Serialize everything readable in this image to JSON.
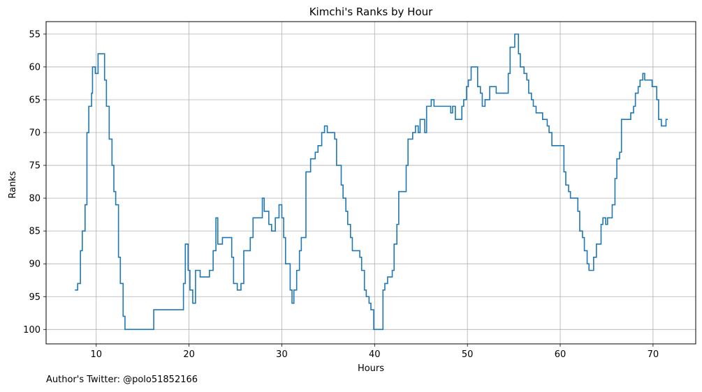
{
  "chart_data": {
    "type": "line",
    "title": "Kimchi's Ranks by Hour",
    "xlabel": "Hours",
    "ylabel": "Ranks",
    "xlim": [
      4.6,
      74.6
    ],
    "ylim": [
      102.2,
      53.1
    ],
    "y_inverted": true,
    "x_ticks": [
      10,
      20,
      30,
      40,
      50,
      60,
      70
    ],
    "y_ticks": [
      55,
      60,
      65,
      70,
      75,
      80,
      85,
      90,
      95,
      100
    ],
    "grid": true,
    "drawstyle": "steps-post",
    "series": [
      {
        "color": "#1f77b4",
        "points": [
          [
            7.7,
            94
          ],
          [
            8.0,
            93
          ],
          [
            8.3,
            88
          ],
          [
            8.5,
            85
          ],
          [
            8.8,
            81
          ],
          [
            9.0,
            70
          ],
          [
            9.2,
            66
          ],
          [
            9.5,
            64
          ],
          [
            9.6,
            60
          ],
          [
            9.9,
            61
          ],
          [
            10.2,
            58
          ],
          [
            10.9,
            62
          ],
          [
            11.1,
            66
          ],
          [
            11.4,
            71
          ],
          [
            11.7,
            75
          ],
          [
            11.9,
            79
          ],
          [
            12.1,
            81
          ],
          [
            12.4,
            89
          ],
          [
            12.6,
            93
          ],
          [
            12.9,
            98
          ],
          [
            13.1,
            100
          ],
          [
            16.2,
            97
          ],
          [
            19.4,
            93
          ],
          [
            19.6,
            87
          ],
          [
            19.9,
            91
          ],
          [
            20.1,
            94
          ],
          [
            20.4,
            96
          ],
          [
            20.7,
            91
          ],
          [
            21.2,
            92
          ],
          [
            22.2,
            91
          ],
          [
            22.6,
            88
          ],
          [
            22.9,
            83
          ],
          [
            23.1,
            87
          ],
          [
            23.6,
            86
          ],
          [
            24.6,
            89
          ],
          [
            24.8,
            93
          ],
          [
            25.2,
            94
          ],
          [
            25.6,
            93
          ],
          [
            25.9,
            88
          ],
          [
            26.6,
            86
          ],
          [
            26.9,
            83
          ],
          [
            27.9,
            80
          ],
          [
            28.1,
            82
          ],
          [
            28.6,
            84
          ],
          [
            28.9,
            85
          ],
          [
            29.3,
            83
          ],
          [
            29.7,
            81
          ],
          [
            30.0,
            83
          ],
          [
            30.2,
            86
          ],
          [
            30.4,
            90
          ],
          [
            30.9,
            94
          ],
          [
            31.1,
            96
          ],
          [
            31.3,
            94
          ],
          [
            31.6,
            91
          ],
          [
            31.9,
            88
          ],
          [
            32.1,
            86
          ],
          [
            32.6,
            76
          ],
          [
            33.1,
            74
          ],
          [
            33.6,
            73
          ],
          [
            33.9,
            72
          ],
          [
            34.3,
            70
          ],
          [
            34.6,
            69
          ],
          [
            34.9,
            70
          ],
          [
            35.7,
            71
          ],
          [
            35.9,
            75
          ],
          [
            36.4,
            78
          ],
          [
            36.6,
            80
          ],
          [
            36.9,
            82
          ],
          [
            37.1,
            84
          ],
          [
            37.4,
            86
          ],
          [
            37.6,
            88
          ],
          [
            38.4,
            89
          ],
          [
            38.6,
            91
          ],
          [
            38.9,
            94
          ],
          [
            39.1,
            95
          ],
          [
            39.4,
            96
          ],
          [
            39.6,
            97
          ],
          [
            39.9,
            100
          ],
          [
            40.9,
            94
          ],
          [
            41.1,
            93
          ],
          [
            41.4,
            92
          ],
          [
            41.9,
            91
          ],
          [
            42.1,
            87
          ],
          [
            42.4,
            84
          ],
          [
            42.6,
            79
          ],
          [
            43.4,
            75
          ],
          [
            43.6,
            71
          ],
          [
            44.1,
            70
          ],
          [
            44.4,
            69
          ],
          [
            44.7,
            70
          ],
          [
            44.9,
            68
          ],
          [
            45.4,
            70
          ],
          [
            45.6,
            66
          ],
          [
            46.1,
            65
          ],
          [
            46.4,
            66
          ],
          [
            48.2,
            67
          ],
          [
            48.4,
            66
          ],
          [
            48.7,
            68
          ],
          [
            49.4,
            66
          ],
          [
            49.6,
            65
          ],
          [
            49.9,
            63
          ],
          [
            50.1,
            62
          ],
          [
            50.4,
            60
          ],
          [
            51.1,
            63
          ],
          [
            51.4,
            64
          ],
          [
            51.6,
            66
          ],
          [
            51.9,
            65
          ],
          [
            52.4,
            63
          ],
          [
            53.1,
            64
          ],
          [
            54.4,
            61
          ],
          [
            54.6,
            57
          ],
          [
            55.1,
            55
          ],
          [
            55.5,
            58
          ],
          [
            55.7,
            60
          ],
          [
            56.1,
            61
          ],
          [
            56.4,
            62
          ],
          [
            56.6,
            64
          ],
          [
            56.9,
            65
          ],
          [
            57.1,
            66
          ],
          [
            57.4,
            67
          ],
          [
            58.1,
            68
          ],
          [
            58.6,
            69
          ],
          [
            58.8,
            70
          ],
          [
            59.1,
            72
          ],
          [
            60.4,
            76
          ],
          [
            60.6,
            78
          ],
          [
            60.9,
            79
          ],
          [
            61.1,
            80
          ],
          [
            61.9,
            82
          ],
          [
            62.1,
            85
          ],
          [
            62.4,
            86
          ],
          [
            62.6,
            88
          ],
          [
            62.9,
            90
          ],
          [
            63.1,
            91
          ],
          [
            63.6,
            89
          ],
          [
            63.9,
            87
          ],
          [
            64.4,
            84
          ],
          [
            64.6,
            83
          ],
          [
            64.9,
            84
          ],
          [
            65.1,
            83
          ],
          [
            65.6,
            81
          ],
          [
            65.9,
            77
          ],
          [
            66.1,
            74
          ],
          [
            66.4,
            73
          ],
          [
            66.6,
            68
          ],
          [
            67.6,
            67
          ],
          [
            67.9,
            66
          ],
          [
            68.1,
            64
          ],
          [
            68.4,
            63
          ],
          [
            68.6,
            62
          ],
          [
            68.9,
            61
          ],
          [
            69.1,
            62
          ],
          [
            69.9,
            63
          ],
          [
            70.4,
            65
          ],
          [
            70.6,
            68
          ],
          [
            70.9,
            69
          ],
          [
            71.4,
            68
          ],
          [
            71.6,
            68
          ]
        ]
      }
    ]
  },
  "footer": "Author's Twitter: @polo51852166"
}
